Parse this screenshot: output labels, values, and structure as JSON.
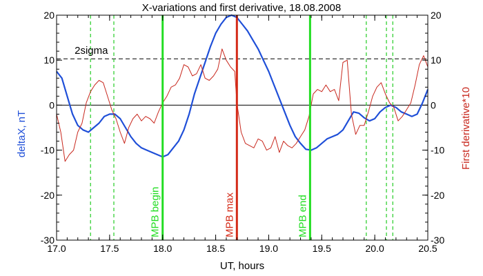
{
  "chart_data": {
    "type": "line",
    "title": "X-variations and first derivative, 18.08.2008",
    "xlabel": "UT, hours",
    "ylabel_left": "deltaX, nT",
    "ylabel_right": "First derivative*10",
    "xlim": [
      17.0,
      20.5
    ],
    "ylim": [
      -30,
      20
    ],
    "x_ticks": [
      17.0,
      17.5,
      18.0,
      18.5,
      19.0,
      19.5,
      20.0,
      20.5
    ],
    "x_tick_labels": [
      "17.0",
      "17.5",
      "18.0",
      "18.5",
      "19.0",
      "19.5",
      "20.0",
      "20.5"
    ],
    "y_ticks": [
      -30,
      -20,
      -10,
      0,
      10,
      20
    ],
    "y_tick_labels": [
      "-30",
      "-20",
      "-10",
      "0",
      "10",
      "20"
    ],
    "threshold": {
      "label": "2sigma",
      "value": 10.3
    },
    "zero_line": 0,
    "colors": {
      "deltaX": "#1f4fd8",
      "derivative": "#c8281e",
      "mpb": "#22dd22",
      "mpb_max": "#d42a17",
      "dashed_green": "#22cc22"
    },
    "vertical_markers": [
      {
        "label": "MPB begin",
        "x": 18.0,
        "color": "green"
      },
      {
        "label": "MPB max",
        "x": 18.7,
        "color": "red"
      },
      {
        "label": "MPB end",
        "x": 19.39,
        "color": "green"
      }
    ],
    "dashed_markers_x": [
      17.32,
      17.54,
      19.92,
      20.11,
      20.17
    ],
    "series": [
      {
        "name": "deltaX, nT",
        "color": "#1f4fd8",
        "x": [
          17.0,
          17.05,
          17.1,
          17.15,
          17.2,
          17.25,
          17.3,
          17.35,
          17.4,
          17.45,
          17.5,
          17.55,
          17.6,
          17.65,
          17.7,
          17.75,
          17.8,
          17.85,
          17.9,
          17.95,
          18.0,
          18.05,
          18.1,
          18.15,
          18.2,
          18.25,
          18.3,
          18.35,
          18.4,
          18.45,
          18.5,
          18.55,
          18.6,
          18.65,
          18.7,
          18.75,
          18.8,
          18.85,
          18.9,
          18.95,
          19.0,
          19.05,
          19.1,
          19.15,
          19.2,
          19.25,
          19.3,
          19.35,
          19.4,
          19.45,
          19.5,
          19.55,
          19.6,
          19.65,
          19.7,
          19.75,
          19.8,
          19.85,
          19.9,
          19.95,
          20.0,
          20.05,
          20.1,
          20.15,
          20.2,
          20.25,
          20.3,
          20.35,
          20.4,
          20.45,
          20.5
        ],
        "y": [
          7.5,
          6.0,
          2.0,
          -2.0,
          -4.5,
          -5.5,
          -6.0,
          -5.0,
          -4.0,
          -2.5,
          -2.0,
          -2.0,
          -3.0,
          -5.0,
          -7.0,
          -8.5,
          -9.5,
          -10.0,
          -10.5,
          -11.0,
          -11.5,
          -11.0,
          -9.5,
          -8.0,
          -5.5,
          -2.0,
          2.5,
          6.0,
          9.5,
          13.0,
          16.0,
          18.0,
          19.5,
          20.0,
          19.5,
          18.0,
          16.5,
          14.5,
          12.5,
          10.0,
          7.5,
          4.5,
          1.5,
          -1.5,
          -4.5,
          -7.0,
          -8.5,
          -9.8,
          -10.0,
          -9.5,
          -8.5,
          -7.5,
          -7.0,
          -6.5,
          -5.5,
          -3.5,
          -1.5,
          -1.8,
          -2.8,
          -3.5,
          -3.0,
          -1.5,
          -0.5,
          0.0,
          -0.5,
          -1.5,
          -2.0,
          -2.5,
          -2.0,
          0.5,
          3.5
        ]
      },
      {
        "name": "First derivative*10",
        "color": "#c8281e",
        "x": [
          17.0,
          17.04,
          17.08,
          17.12,
          17.16,
          17.2,
          17.24,
          17.28,
          17.32,
          17.36,
          17.4,
          17.44,
          17.48,
          17.52,
          17.56,
          17.6,
          17.64,
          17.68,
          17.72,
          17.76,
          17.8,
          17.84,
          17.88,
          17.92,
          17.96,
          18.0,
          18.04,
          18.08,
          18.12,
          18.16,
          18.2,
          18.24,
          18.28,
          18.32,
          18.36,
          18.4,
          18.44,
          18.48,
          18.52,
          18.56,
          18.6,
          18.64,
          18.68,
          18.7,
          18.74,
          18.78,
          18.82,
          18.86,
          18.9,
          18.94,
          18.98,
          19.02,
          19.06,
          19.1,
          19.14,
          19.18,
          19.22,
          19.26,
          19.3,
          19.34,
          19.38,
          19.42,
          19.46,
          19.5,
          19.54,
          19.58,
          19.62,
          19.66,
          19.7,
          19.74,
          19.78,
          19.82,
          19.86,
          19.9,
          19.94,
          19.98,
          20.02,
          20.06,
          20.1,
          20.14,
          20.18,
          20.22,
          20.26,
          20.3,
          20.34,
          20.38,
          20.42,
          20.46,
          20.5
        ],
        "y": [
          -2.0,
          -6.0,
          -12.5,
          -11.0,
          -10.0,
          -6.0,
          -4.0,
          0.5,
          3.0,
          4.5,
          5.5,
          5.0,
          2.0,
          -1.0,
          -3.0,
          -6.0,
          -8.5,
          -5.0,
          -3.0,
          -2.0,
          -3.5,
          -2.5,
          -3.0,
          -4.0,
          -1.5,
          0.5,
          2.0,
          4.0,
          4.5,
          6.0,
          9.0,
          8.5,
          6.5,
          7.0,
          9.0,
          6.0,
          5.5,
          6.5,
          8.0,
          12.5,
          10.0,
          8.5,
          7.5,
          0.5,
          -6.0,
          -8.5,
          -9.0,
          -9.5,
          -7.5,
          -8.0,
          -10.0,
          -9.5,
          -7.0,
          -10.5,
          -8.0,
          -9.0,
          -9.5,
          -8.5,
          -7.0,
          -5.5,
          -2.5,
          2.5,
          3.5,
          3.0,
          4.5,
          3.0,
          3.5,
          1.0,
          9.5,
          10.0,
          -2.0,
          -6.5,
          -4.5,
          -4.5,
          -1.5,
          2.0,
          4.0,
          5.0,
          2.5,
          0.5,
          -0.5,
          -3.5,
          -2.5,
          -1.0,
          0.5,
          4.5,
          9.0,
          11.0,
          8.5
        ]
      }
    ]
  }
}
